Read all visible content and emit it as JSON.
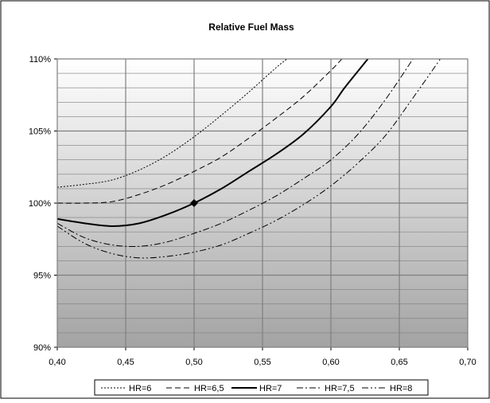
{
  "chart_data": {
    "type": "line",
    "title": "Relative Fuel Mass",
    "xlabel": "",
    "ylabel": "",
    "xlim": [
      0.4,
      0.7
    ],
    "ylim": [
      90,
      110
    ],
    "x_ticks": [
      {
        "value": 0.4,
        "label": "0,40"
      },
      {
        "value": 0.45,
        "label": "0,45"
      },
      {
        "value": 0.5,
        "label": "0,50"
      },
      {
        "value": 0.55,
        "label": "0,55"
      },
      {
        "value": 0.6,
        "label": "0,60"
      },
      {
        "value": 0.65,
        "label": "0,65"
      },
      {
        "value": 0.7,
        "label": "0,70"
      }
    ],
    "y_ticks": [
      {
        "value": 90,
        "label": "90%"
      },
      {
        "value": 95,
        "label": "95%"
      },
      {
        "value": 100,
        "label": "100%"
      },
      {
        "value": 105,
        "label": "105%"
      },
      {
        "value": 110,
        "label": "110%"
      }
    ],
    "grid": true,
    "legend_position": "bottom",
    "series": [
      {
        "name": "HR=6",
        "dash": "2,2",
        "width": 1,
        "points": [
          [
            0.4,
            101.1
          ],
          [
            0.42,
            101.3
          ],
          [
            0.44,
            101.6
          ],
          [
            0.46,
            102.3
          ],
          [
            0.48,
            103.3
          ],
          [
            0.5,
            104.6
          ],
          [
            0.52,
            106.1
          ],
          [
            0.54,
            107.7
          ],
          [
            0.56,
            109.4
          ],
          [
            0.568,
            110.0
          ]
        ]
      },
      {
        "name": "HR=6,5",
        "dash": "7,4",
        "width": 1,
        "points": [
          [
            0.4,
            100.0
          ],
          [
            0.42,
            100.0
          ],
          [
            0.44,
            100.1
          ],
          [
            0.46,
            100.6
          ],
          [
            0.48,
            101.3
          ],
          [
            0.5,
            102.2
          ],
          [
            0.52,
            103.2
          ],
          [
            0.54,
            104.5
          ],
          [
            0.56,
            105.9
          ],
          [
            0.58,
            107.4
          ],
          [
            0.6,
            109.2
          ],
          [
            0.608,
            110.0
          ]
        ]
      },
      {
        "name": "HR=7",
        "dash": "",
        "width": 2,
        "points": [
          [
            0.4,
            98.9
          ],
          [
            0.42,
            98.6
          ],
          [
            0.44,
            98.4
          ],
          [
            0.46,
            98.6
          ],
          [
            0.48,
            99.2
          ],
          [
            0.5,
            100.0
          ],
          [
            0.52,
            101.0
          ],
          [
            0.54,
            102.2
          ],
          [
            0.56,
            103.4
          ],
          [
            0.58,
            104.8
          ],
          [
            0.6,
            106.7
          ],
          [
            0.61,
            108.0
          ],
          [
            0.627,
            110.0
          ]
        ]
      },
      {
        "name": "HR=7,5",
        "dash": "8,3,2,3",
        "width": 1,
        "points": [
          [
            0.4,
            98.6
          ],
          [
            0.42,
            97.6
          ],
          [
            0.44,
            97.1
          ],
          [
            0.46,
            97.0
          ],
          [
            0.48,
            97.3
          ],
          [
            0.5,
            97.9
          ],
          [
            0.52,
            98.6
          ],
          [
            0.54,
            99.5
          ],
          [
            0.56,
            100.5
          ],
          [
            0.58,
            101.7
          ],
          [
            0.6,
            103.0
          ],
          [
            0.62,
            104.8
          ],
          [
            0.64,
            107.2
          ],
          [
            0.66,
            110.0
          ]
        ]
      },
      {
        "name": "HR=8",
        "dash": "8,3,2,3,2,3",
        "width": 1,
        "points": [
          [
            0.4,
            98.4
          ],
          [
            0.42,
            97.2
          ],
          [
            0.44,
            96.5
          ],
          [
            0.46,
            96.2
          ],
          [
            0.48,
            96.3
          ],
          [
            0.5,
            96.6
          ],
          [
            0.52,
            97.1
          ],
          [
            0.54,
            97.9
          ],
          [
            0.56,
            98.8
          ],
          [
            0.58,
            99.9
          ],
          [
            0.6,
            101.2
          ],
          [
            0.62,
            102.8
          ],
          [
            0.64,
            104.7
          ],
          [
            0.66,
            107.3
          ],
          [
            0.68,
            110.0
          ]
        ]
      }
    ],
    "markers": [
      {
        "x": 0.5,
        "y": 100.0,
        "shape": "diamond",
        "series": "HR=7"
      }
    ],
    "colors": {
      "line": "#000000",
      "grid": "#7f7f7f",
      "plot_gradient_top": "#ffffff",
      "plot_gradient_bottom": "#a3a3a3"
    }
  }
}
